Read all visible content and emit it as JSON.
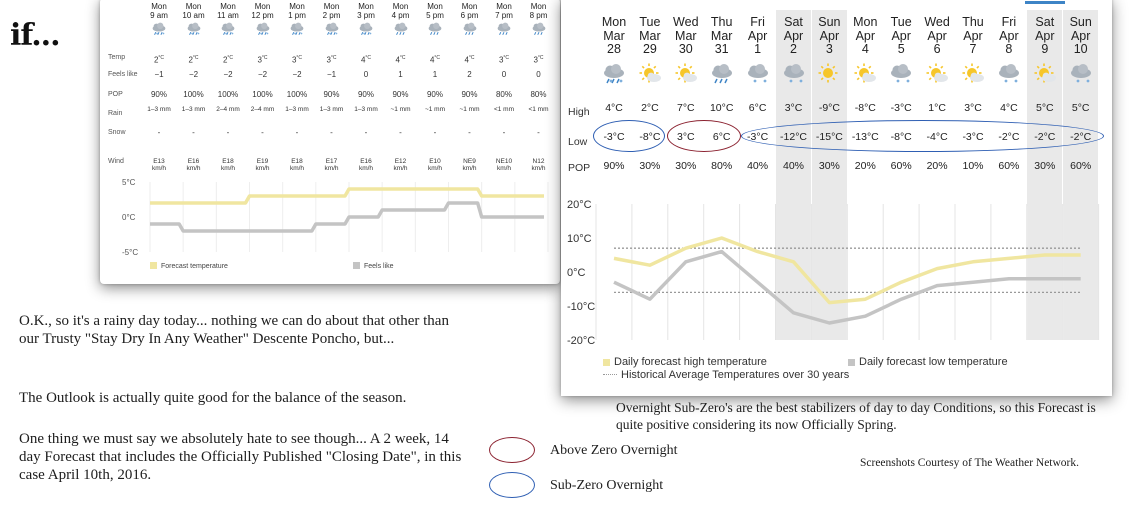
{
  "brand": "if...",
  "hourly": {
    "row_labels": {
      "temp": "Temp",
      "feels": "Feels like",
      "pop": "POP",
      "rain": "Rain",
      "snow": "Snow",
      "wind": "Wind"
    },
    "hours": [
      {
        "day": "Mon",
        "time": "9 am",
        "temp": "2",
        "feels": "−1",
        "pop": "90%",
        "rain": "1–3 mm",
        "snow": "-",
        "wind": "E13 km/h",
        "icon": "rain-snow-icon"
      },
      {
        "day": "Mon",
        "time": "10 am",
        "temp": "2",
        "feels": "−2",
        "pop": "100%",
        "rain": "1–3 mm",
        "snow": "-",
        "wind": "E16 km/h",
        "icon": "rain-snow-icon"
      },
      {
        "day": "Mon",
        "time": "11 am",
        "temp": "2",
        "feels": "−2",
        "pop": "100%",
        "rain": "2–4 mm",
        "snow": "-",
        "wind": "E18 km/h",
        "icon": "rain-snow-icon"
      },
      {
        "day": "Mon",
        "time": "12 pm",
        "temp": "3",
        "feels": "−2",
        "pop": "100%",
        "rain": "2–4 mm",
        "snow": "-",
        "wind": "E19 km/h",
        "icon": "rain-snow-icon"
      },
      {
        "day": "Mon",
        "time": "1 pm",
        "temp": "3",
        "feels": "−2",
        "pop": "100%",
        "rain": "1–3 mm",
        "snow": "-",
        "wind": "E18 km/h",
        "icon": "rain-snow-icon"
      },
      {
        "day": "Mon",
        "time": "2 pm",
        "temp": "3",
        "feels": "−1",
        "pop": "90%",
        "rain": "1–3 mm",
        "snow": "-",
        "wind": "E17 km/h",
        "icon": "rain-snow-icon"
      },
      {
        "day": "Mon",
        "time": "3 pm",
        "temp": "4",
        "feels": "0",
        "pop": "90%",
        "rain": "1–3 mm",
        "snow": "-",
        "wind": "E16 km/h",
        "icon": "rain-snow-icon"
      },
      {
        "day": "Mon",
        "time": "4 pm",
        "temp": "4",
        "feels": "1",
        "pop": "90%",
        "rain": "~1 mm",
        "snow": "-",
        "wind": "E12 km/h",
        "icon": "rain-icon"
      },
      {
        "day": "Mon",
        "time": "5 pm",
        "temp": "4",
        "feels": "1",
        "pop": "90%",
        "rain": "~1 mm",
        "snow": "-",
        "wind": "E10 km/h",
        "icon": "rain-icon"
      },
      {
        "day": "Mon",
        "time": "6 pm",
        "temp": "4",
        "feels": "2",
        "pop": "90%",
        "rain": "~1 mm",
        "snow": "-",
        "wind": "NE9 km/h",
        "icon": "rain-icon"
      },
      {
        "day": "Mon",
        "time": "7 pm",
        "temp": "3",
        "feels": "0",
        "pop": "80%",
        "rain": "<1 mm",
        "snow": "-",
        "wind": "NE10 km/h",
        "icon": "rain-icon"
      },
      {
        "day": "Mon",
        "time": "8 pm",
        "temp": "3",
        "feels": "0",
        "pop": "80%",
        "rain": "<1 mm",
        "snow": "-",
        "wind": "N12 km/h",
        "icon": "rain-icon"
      }
    ],
    "temp_unit": "°C"
  },
  "fourteen_day": {
    "row_labels": {
      "high": "High",
      "low": "Low",
      "pop": "POP"
    },
    "days": [
      {
        "dow": "Mon",
        "month": "Mar",
        "date": "28",
        "high": "4°C",
        "low": "-3°C",
        "pop": "90%",
        "icon": "rain-snow-icon",
        "weekend": false
      },
      {
        "dow": "Tue",
        "month": "Mar",
        "date": "29",
        "high": "2°C",
        "low": "-8°C",
        "pop": "30%",
        "icon": "sun-cloud-icon",
        "weekend": false
      },
      {
        "dow": "Wed",
        "month": "Mar",
        "date": "30",
        "high": "7°C",
        "low": "3°C",
        "pop": "30%",
        "icon": "sun-cloud-icon",
        "weekend": false
      },
      {
        "dow": "Thu",
        "month": "Mar",
        "date": "31",
        "high": "10°C",
        "low": "6°C",
        "pop": "80%",
        "icon": "rain-icon",
        "weekend": false
      },
      {
        "dow": "Fri",
        "month": "Apr",
        "date": "1",
        "high": "6°C",
        "low": "-3°C",
        "pop": "40%",
        "icon": "snow-icon",
        "weekend": false
      },
      {
        "dow": "Sat",
        "month": "Apr",
        "date": "2",
        "high": "3°C",
        "low": "-12°C",
        "pop": "40%",
        "icon": "snow-icon",
        "weekend": true
      },
      {
        "dow": "Sun",
        "month": "Apr",
        "date": "3",
        "high": "-9°C",
        "low": "-15°C",
        "pop": "30%",
        "icon": "sun-icon",
        "weekend": true
      },
      {
        "dow": "Mon",
        "month": "Apr",
        "date": "4",
        "high": "-8°C",
        "low": "-13°C",
        "pop": "20%",
        "icon": "sun-cloud-icon",
        "weekend": false
      },
      {
        "dow": "Tue",
        "month": "Apr",
        "date": "5",
        "high": "-3°C",
        "low": "-8°C",
        "pop": "60%",
        "icon": "snow-icon",
        "weekend": false
      },
      {
        "dow": "Wed",
        "month": "Apr",
        "date": "6",
        "high": "1°C",
        "low": "-4°C",
        "pop": "20%",
        "icon": "sun-cloud-icon",
        "weekend": false
      },
      {
        "dow": "Thu",
        "month": "Apr",
        "date": "7",
        "high": "3°C",
        "low": "-3°C",
        "pop": "10%",
        "icon": "sun-cloud-icon",
        "weekend": false
      },
      {
        "dow": "Fri",
        "month": "Apr",
        "date": "8",
        "high": "4°C",
        "low": "-2°C",
        "pop": "60%",
        "icon": "snow-icon",
        "weekend": false
      },
      {
        "dow": "Sat",
        "month": "Apr",
        "date": "9",
        "high": "5°C",
        "low": "-2°C",
        "pop": "30%",
        "icon": "sun-cloud-icon",
        "weekend": true
      },
      {
        "dow": "Sun",
        "month": "Apr",
        "date": "10",
        "high": "5°C",
        "low": "-2°C",
        "pop": "60%",
        "icon": "snow-icon",
        "weekend": true
      }
    ]
  },
  "chart_data": [
    {
      "type": "line",
      "x": [
        "9 am",
        "10 am",
        "11 am",
        "12 pm",
        "1 pm",
        "2 pm",
        "3 pm",
        "4 pm",
        "5 pm",
        "6 pm",
        "7 pm",
        "8 pm"
      ],
      "series": [
        {
          "name": "Forecast temperature",
          "values": [
            2,
            2,
            2,
            3,
            3,
            3,
            4,
            4,
            4,
            4,
            3,
            3
          ],
          "color": "#f0e6a0"
        },
        {
          "name": "Feels like",
          "values": [
            -1,
            -2,
            -2,
            -2,
            -2,
            -1,
            0,
            1,
            1,
            2,
            0,
            0
          ],
          "color": "#c4c4c4"
        }
      ],
      "ytick_labels": [
        "5°C",
        "0°C",
        "-5°C"
      ],
      "ylim": [
        -5,
        5
      ],
      "legend": "bottom"
    },
    {
      "type": "line",
      "x": [
        "Mar 28",
        "Mar 29",
        "Mar 30",
        "Mar 31",
        "Apr 1",
        "Apr 2",
        "Apr 3",
        "Apr 4",
        "Apr 5",
        "Apr 6",
        "Apr 7",
        "Apr 8",
        "Apr 9",
        "Apr 10"
      ],
      "series": [
        {
          "name": "Daily forecast high temperature",
          "values": [
            4,
            2,
            7,
            10,
            6,
            3,
            -9,
            -8,
            -3,
            1,
            3,
            4,
            5,
            5
          ],
          "color": "#f0e6a0"
        },
        {
          "name": "Daily forecast low temperature",
          "values": [
            -3,
            -8,
            3,
            6,
            -3,
            -12,
            -15,
            -13,
            -8,
            -4,
            -3,
            -2,
            -2,
            -2
          ],
          "color": "#c4c4c4"
        }
      ],
      "reference_lines": {
        "name": "Historical Average Temperatures over 30 years",
        "high": 7,
        "low": -6
      },
      "ytick_labels": [
        "20°C",
        "10°C",
        "0°C",
        "-10°C",
        "-20°C"
      ],
      "ylim": [
        -20,
        20
      ],
      "legend": "bottom"
    }
  ],
  "text": {
    "para1": "O.K., so it's a rainy day today... nothing we can do about that other than our Trusty \"Stay Dry In Any Weather\" Descente Poncho, but...",
    "para2": "The Outlook is actually quite good for the balance of the season.",
    "para3": "One thing we must say we absolutely hate to see though... A 2 week, 14 day Forecast that includes the Officially Published \"Closing Date\", in this case April 10th, 2016.",
    "above_zero": "Above Zero Overnight",
    "sub_zero": "Sub-Zero Overnight",
    "note": "Overnight Sub-Zero's are the best stabilizers of day to day Conditions, so this Forecast is quite positive considering its now Officially Spring.",
    "credit": "Screenshots Courtesy of The Weather Network."
  },
  "colors": {
    "above_zero": "#8b2230",
    "sub_zero": "#2f5fb3",
    "high_line": "#f0e6a0",
    "low_line": "#c4c4c4"
  }
}
